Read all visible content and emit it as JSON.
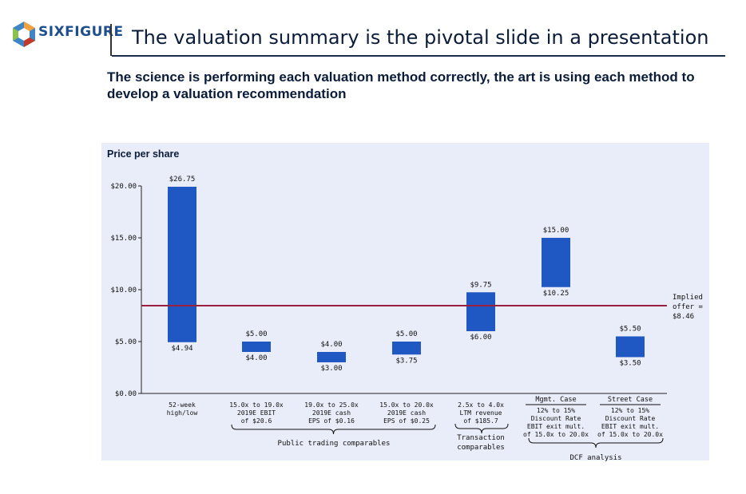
{
  "header": {
    "logo_text": "SIXFIGURE",
    "title": "The valuation summary is the pivotal slide in a presentation",
    "subtitle": "The science is performing each valuation method correctly, the art is using each method to develop a valuation recommendation"
  },
  "colors": {
    "bar": "#1f57c3",
    "reference_line": "#9b1f3f",
    "panel": "#e9ecf9",
    "title": "#0b1c3a"
  },
  "chart_data": {
    "type": "bar",
    "subtype": "floating-range",
    "ylabel": "Price per share",
    "ylim": [
      0,
      20
    ],
    "yticks": [
      "$0.00",
      "$5.00",
      "$10.00",
      "$15.00",
      "$20.00"
    ],
    "ytick_values": [
      0,
      5,
      10,
      15,
      20
    ],
    "grid": false,
    "categories": [
      {
        "lines": [
          "52-week",
          "high/low"
        ],
        "low": 4.94,
        "high": 26.75,
        "low_label": "$4.94",
        "high_label": "$26.75"
      },
      {
        "lines": [
          "15.0x to 19.0x",
          "2019E EBIT",
          "of $20.6"
        ],
        "low": 4.0,
        "high": 5.0,
        "low_label": "$4.00",
        "high_label": "$5.00"
      },
      {
        "lines": [
          "19.0x to 25.0x",
          "2019E cash",
          "EPS of $0.16"
        ],
        "low": 3.0,
        "high": 4.0,
        "low_label": "$3.00",
        "high_label": "$4.00"
      },
      {
        "lines": [
          "15.0x to 20.0x",
          "2019E cash",
          "EPS of $0.25"
        ],
        "low": 3.75,
        "high": 5.0,
        "low_label": "$3.75",
        "high_label": "$5.00"
      },
      {
        "lines": [
          "2.5x to 4.0x",
          "LTM revenue",
          "of $185.7"
        ],
        "low": 6.0,
        "high": 9.75,
        "low_label": "$6.00",
        "high_label": "$9.75"
      },
      {
        "header": "Mgmt. Case",
        "lines": [
          "12% to 15%",
          "Discount Rate",
          "EBIT exit mult.",
          "of 15.0x to 20.0x"
        ],
        "low": 10.25,
        "high": 15.0,
        "low_label": "$10.25",
        "high_label": "$15.00"
      },
      {
        "header": "Street Case",
        "lines": [
          "12% to 15%",
          "Discount Rate",
          "EBIT exit mult.",
          "of 15.0x to 20.0x"
        ],
        "low": 3.5,
        "high": 5.5,
        "low_label": "$3.50",
        "high_label": "$5.50"
      }
    ],
    "reference_line": {
      "value": 8.46,
      "label_lines": [
        "Implied",
        "offer =",
        "$8.46"
      ]
    },
    "groups": [
      {
        "label": "Public trading comparables",
        "from": 1,
        "to": 3
      },
      {
        "label_lines": [
          "Transaction",
          "comparables"
        ],
        "from": 4,
        "to": 4
      },
      {
        "label": "DCF analysis",
        "from": 5,
        "to": 6
      }
    ]
  }
}
